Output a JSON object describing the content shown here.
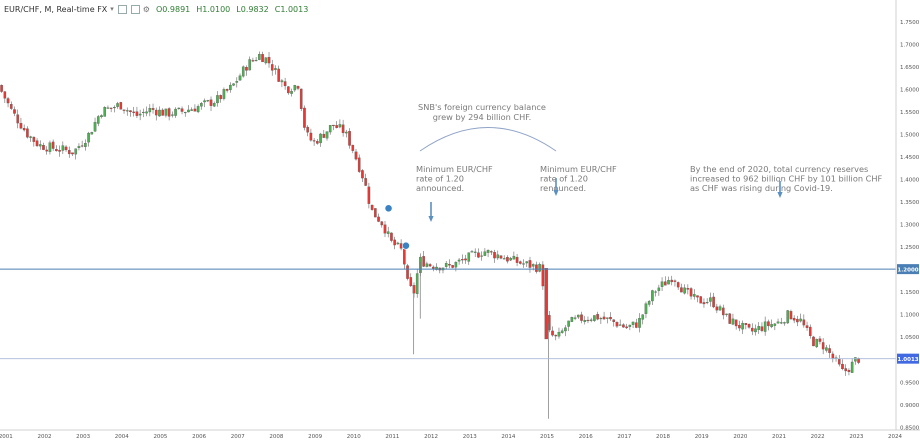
{
  "header": {
    "symbol": "EUR/CHF, M, Real-time FX",
    "dropdown_glyph": "▾",
    "open": "O0.9891",
    "high": "H1.0100",
    "low": "L0.9832",
    "close": "C1.0013"
  },
  "colors": {
    "up": "#4caf50",
    "down": "#e53935",
    "ann_line": "#90a4c8",
    "arrow": "#5b8fc2",
    "hline": "#4a7fb5",
    "current": "#4169e1",
    "text": "#7a7a7a",
    "grid": "#e6e6e6"
  },
  "chart_data": {
    "type": "candlestick",
    "title": "EUR/CHF, M, Real-time FX",
    "xlabel": "",
    "ylabel": "",
    "x_range": [
      2000.85,
      2024.0
    ],
    "y_range": [
      0.843,
      1.775
    ],
    "x_ticks": [
      "2001",
      "2002",
      "2003",
      "2004",
      "2005",
      "2006",
      "2007",
      "2008",
      "2009",
      "2010",
      "2011",
      "2012",
      "2013",
      "2014",
      "2015",
      "2016",
      "2017",
      "2018",
      "2019",
      "2020",
      "2021",
      "2022",
      "2023",
      "2024"
    ],
    "x_tick_values": [
      2001,
      2002,
      2003,
      2004,
      2005,
      2006,
      2007,
      2008,
      2009,
      2010,
      2011,
      2012,
      2013,
      2014,
      2015,
      2016,
      2017,
      2018,
      2019,
      2020,
      2021,
      2022,
      2023,
      2024
    ],
    "y_ticks": [
      "1.7500",
      "1.7000",
      "1.6500",
      "1.6000",
      "1.5500",
      "1.5000",
      "1.4500",
      "1.4000",
      "1.3500",
      "1.3000",
      "1.2500",
      "1.1500",
      "1.1000",
      "1.0500",
      "0.9500",
      "0.9000",
      "0.8500"
    ],
    "y_tick_values": [
      1.75,
      1.7,
      1.65,
      1.6,
      1.55,
      1.5,
      1.45,
      1.4,
      1.35,
      1.3,
      1.25,
      1.15,
      1.1,
      1.05,
      0.95,
      0.9,
      0.85
    ],
    "price_path": [
      [
        2000.85,
        1.608
      ],
      [
        2001.2,
        1.55
      ],
      [
        2001.6,
        1.5
      ],
      [
        2001.9,
        1.475
      ],
      [
        2002.2,
        1.47
      ],
      [
        2002.5,
        1.465
      ],
      [
        2002.8,
        1.46
      ],
      [
        2003.2,
        1.5
      ],
      [
        2003.5,
        1.55
      ],
      [
        2004.0,
        1.565
      ],
      [
        2004.4,
        1.54
      ],
      [
        2004.8,
        1.555
      ],
      [
        2005.2,
        1.545
      ],
      [
        2005.6,
        1.55
      ],
      [
        2006.0,
        1.56
      ],
      [
        2006.5,
        1.575
      ],
      [
        2006.9,
        1.605
      ],
      [
        2007.3,
        1.655
      ],
      [
        2007.6,
        1.675
      ],
      [
        2007.8,
        1.665
      ],
      [
        2008.0,
        1.64
      ],
      [
        2008.3,
        1.6
      ],
      [
        2008.6,
        1.61
      ],
      [
        2008.8,
        1.5
      ],
      [
        2009.0,
        1.48
      ],
      [
        2009.2,
        1.495
      ],
      [
        2009.5,
        1.52
      ],
      [
        2009.8,
        1.505
      ],
      [
        2010.0,
        1.47
      ],
      [
        2010.3,
        1.4
      ],
      [
        2010.5,
        1.33
      ],
      [
        2010.8,
        1.3
      ],
      [
        2011.0,
        1.26
      ],
      [
        2011.3,
        1.24
      ],
      [
        2011.45,
        1.16
      ],
      [
        2011.6,
        1.15
      ],
      [
        2011.75,
        1.22
      ],
      [
        2012.0,
        1.21
      ],
      [
        2012.5,
        1.205
      ],
      [
        2013.0,
        1.225
      ],
      [
        2013.4,
        1.24
      ],
      [
        2013.8,
        1.23
      ],
      [
        2014.3,
        1.215
      ],
      [
        2014.9,
        1.202
      ],
      [
        2015.05,
        1.06
      ],
      [
        2015.3,
        1.045
      ],
      [
        2015.6,
        1.08
      ],
      [
        2015.9,
        1.09
      ],
      [
        2016.3,
        1.095
      ],
      [
        2016.7,
        1.085
      ],
      [
        2017.1,
        1.07
      ],
      [
        2017.4,
        1.08
      ],
      [
        2017.8,
        1.15
      ],
      [
        2018.1,
        1.17
      ],
      [
        2018.3,
        1.185
      ],
      [
        2018.6,
        1.15
      ],
      [
        2018.9,
        1.13
      ],
      [
        2019.3,
        1.13
      ],
      [
        2019.7,
        1.09
      ],
      [
        2020.0,
        1.075
      ],
      [
        2020.3,
        1.06
      ],
      [
        2020.7,
        1.075
      ],
      [
        2021.0,
        1.08
      ],
      [
        2021.3,
        1.1
      ],
      [
        2021.6,
        1.085
      ],
      [
        2021.9,
        1.04
      ],
      [
        2022.2,
        1.03
      ],
      [
        2022.5,
        0.995
      ],
      [
        2022.7,
        0.97
      ],
      [
        2022.9,
        0.985
      ],
      [
        2023.05,
        1.001
      ]
    ],
    "spikes": [
      {
        "x": 2011.55,
        "low": 1.011
      },
      {
        "x": 2011.72,
        "low": 1.09
      },
      {
        "x": 2015.04,
        "low": 0.868
      }
    ],
    "horizontal_lines": [
      {
        "value": 1.2,
        "label": "1.2000"
      },
      {
        "value": 1.0013,
        "label": "1.0013"
      }
    ],
    "annotations": [
      {
        "id": "snb",
        "lines": [
          "SNB's foreign currency balance",
          "grew by 294 billion CHF."
        ]
      },
      {
        "id": "min-announced",
        "lines": [
          "Minimum EUR/CHF",
          "rate of 1.20",
          "announced."
        ]
      },
      {
        "id": "min-renounced",
        "lines": [
          "Minimum EUR/CHF",
          "rate of 1.20",
          "renounced."
        ]
      },
      {
        "id": "reserves-2020",
        "lines": [
          "By the end of 2020, total currency reserves",
          "increased to 962 billion CHF by 101 billion CHF",
          "as CHF was rising during Covid-19."
        ]
      }
    ],
    "grid": false
  }
}
